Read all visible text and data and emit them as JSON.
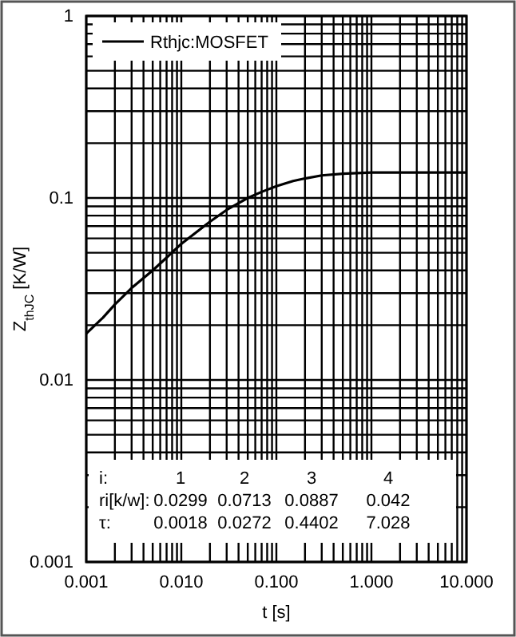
{
  "chart_data": {
    "type": "line",
    "xlabel": "t [s]",
    "ylabel": "Z$_{thJC}$ [K/W]",
    "x": [
      0.001,
      0.0015,
      0.002,
      0.003,
      0.005,
      0.007,
      0.01,
      0.015,
      0.02,
      0.03,
      0.05,
      0.07,
      0.1,
      0.15,
      0.2,
      0.3,
      0.5,
      0.7,
      1,
      2,
      5,
      10
    ],
    "series": [
      {
        "name": "Rthjc:MOSFET",
        "color": "#000000",
        "values": [
          0.018,
          0.022,
          0.026,
          0.032,
          0.04,
          0.047,
          0.056,
          0.066,
          0.074,
          0.086,
          0.1,
          0.108,
          0.116,
          0.124,
          0.128,
          0.133,
          0.136,
          0.137,
          0.138,
          0.138,
          0.138,
          0.138
        ]
      }
    ],
    "log": "xy",
    "xlim": [
      0.001,
      10
    ],
    "ylim": [
      0.001,
      1
    ],
    "xticks": [
      {
        "value": 0.001,
        "label": "0.001"
      },
      {
        "value": 0.002,
        "label": null
      },
      {
        "value": 0.003,
        "label": null
      },
      {
        "value": 0.004,
        "label": null
      },
      {
        "value": 0.005,
        "label": null
      },
      {
        "value": 0.006,
        "label": null
      },
      {
        "value": 0.007,
        "label": null
      },
      {
        "value": 0.008,
        "label": null
      },
      {
        "value": 0.009,
        "label": null
      },
      {
        "value": 0.01,
        "label": "0.010"
      },
      {
        "value": 0.02,
        "label": null
      },
      {
        "value": 0.03,
        "label": null
      },
      {
        "value": 0.04,
        "label": null
      },
      {
        "value": 0.05,
        "label": null
      },
      {
        "value": 0.06,
        "label": null
      },
      {
        "value": 0.07,
        "label": null
      },
      {
        "value": 0.08,
        "label": null
      },
      {
        "value": 0.09,
        "label": null
      },
      {
        "value": 0.1,
        "label": "0.100"
      },
      {
        "value": 0.2,
        "label": null
      },
      {
        "value": 0.3,
        "label": null
      },
      {
        "value": 0.4,
        "label": null
      },
      {
        "value": 0.5,
        "label": null
      },
      {
        "value": 0.6,
        "label": null
      },
      {
        "value": 0.7,
        "label": null
      },
      {
        "value": 0.8,
        "label": null
      },
      {
        "value": 0.9,
        "label": null
      },
      {
        "value": 1,
        "label": "1.000"
      },
      {
        "value": 2,
        "label": null
      },
      {
        "value": 3,
        "label": null
      },
      {
        "value": 4,
        "label": null
      },
      {
        "value": 5,
        "label": null
      },
      {
        "value": 6,
        "label": null
      },
      {
        "value": 7,
        "label": null
      },
      {
        "value": 8,
        "label": null
      },
      {
        "value": 9,
        "label": null
      },
      {
        "value": 10,
        "label": "10.000"
      }
    ],
    "yticks": [
      0.001,
      {
        "value": 0.002,
        "label": null
      },
      {
        "value": 0.003,
        "label": null
      },
      {
        "value": 0.004,
        "label": null
      },
      {
        "value": 0.005,
        "label": null
      },
      {
        "value": 0.006,
        "label": null
      },
      {
        "value": 0.007,
        "label": null
      },
      {
        "value": 0.008,
        "label": null
      },
      {
        "value": 0.009,
        "label": null
      },
      0.01,
      {
        "value": 0.02,
        "label": null
      },
      {
        "value": 0.03,
        "label": null
      },
      {
        "value": 0.04,
        "label": null
      },
      {
        "value": 0.05,
        "label": null
      },
      {
        "value": 0.06,
        "label": null
      },
      {
        "value": 0.07,
        "label": null
      },
      {
        "value": 0.08,
        "label": null
      },
      {
        "value": 0.09,
        "label": null
      },
      0.1,
      {
        "value": 0.2,
        "label": null
      },
      {
        "value": 0.3,
        "label": null
      },
      {
        "value": 0.4,
        "label": null
      },
      {
        "value": 0.5,
        "label": null
      },
      {
        "value": 0.6,
        "label": null
      },
      {
        "value": 0.7,
        "label": null
      },
      {
        "value": 0.8,
        "label": null
      },
      {
        "value": 0.9,
        "label": null
      },
      1
    ],
    "grid": true,
    "legend": "top left",
    "line_style": "solid",
    "marker": "none",
    "annotations": [
      "i:",
      "1",
      "2",
      "3",
      "4",
      "ri[k/w]:",
      "0.0299",
      "0.0713",
      "0.0887",
      "0.042",
      "τ:",
      "0.0018",
      "0.0272",
      "0.4402",
      "7.028"
    ]
  }
}
